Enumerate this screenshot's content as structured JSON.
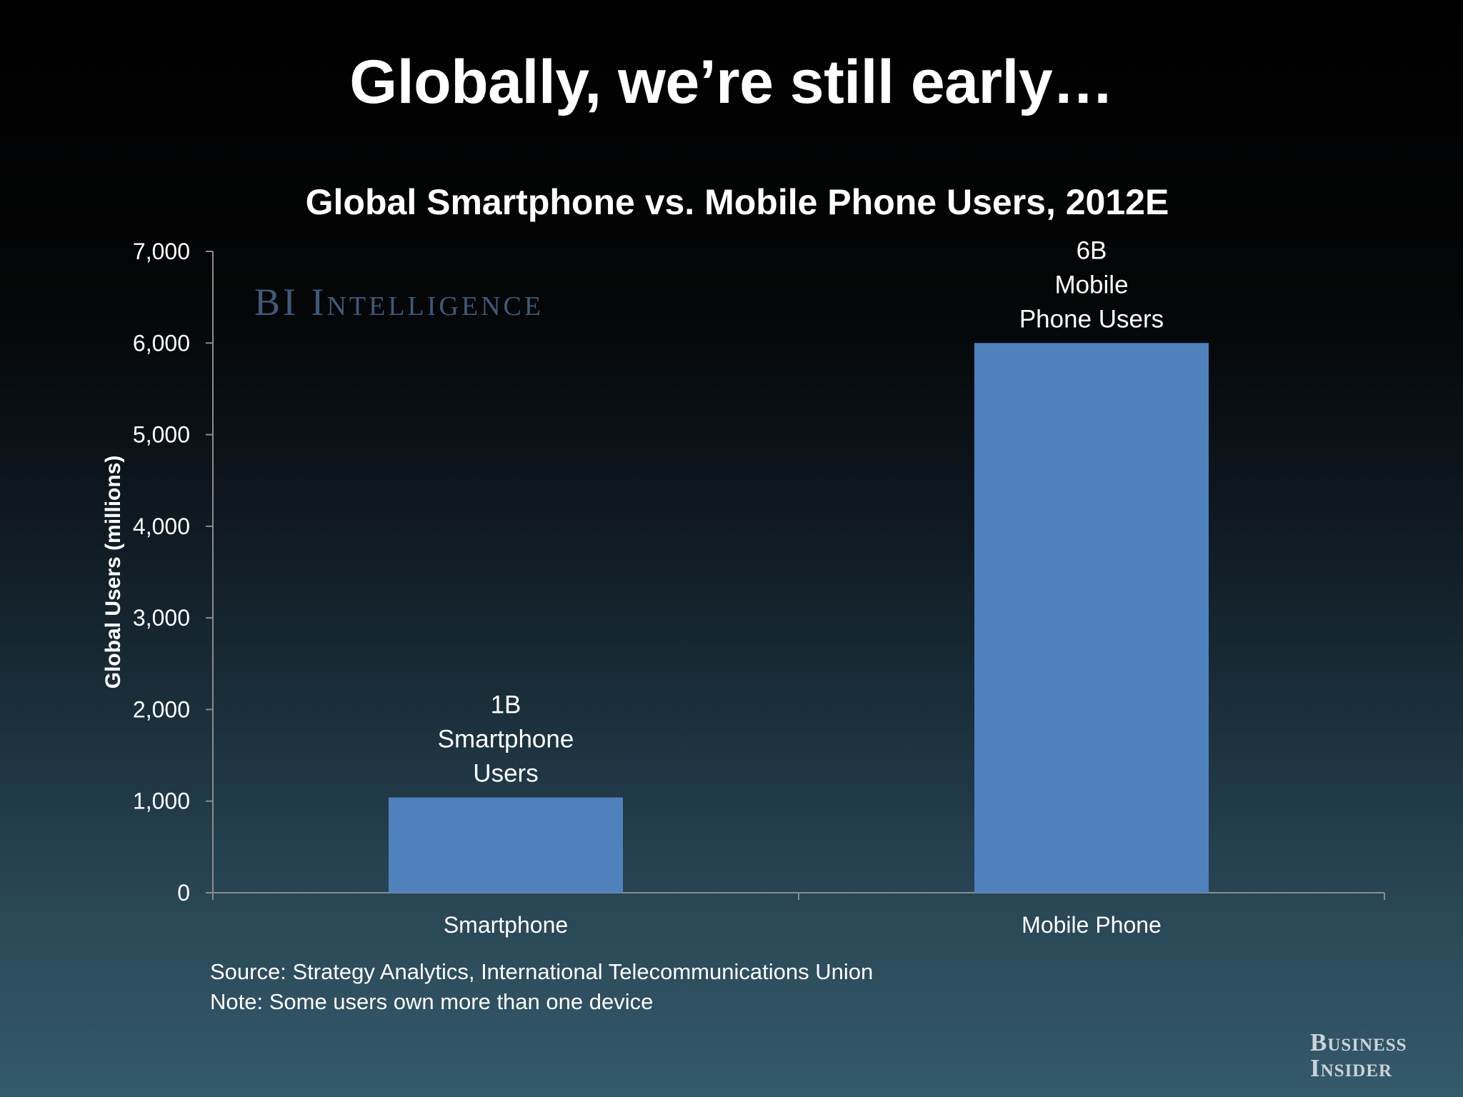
{
  "slide": {
    "title": "Globally, we’re still early…",
    "watermark": "BI Intelligence",
    "source": "Source: Strategy Analytics, International Telecommunications Union",
    "note": "Note: Some users own more than one device",
    "brand_logo": [
      "Business",
      "Insider"
    ]
  },
  "colors": {
    "bar": "#4f81bd",
    "axis": "#8c8c8c"
  },
  "chart_data": {
    "type": "bar",
    "title": "Global Smartphone vs. Mobile Phone Users, 2012E",
    "xlabel": "",
    "ylabel": "Global Users (millions)",
    "ylim": [
      0,
      7000
    ],
    "yticks": [
      0,
      1000,
      2000,
      3000,
      4000,
      5000,
      6000,
      7000
    ],
    "ytick_labels": [
      "0",
      "1,000",
      "2,000",
      "3,000",
      "4,000",
      "5,000",
      "6,000",
      "7,000"
    ],
    "categories": [
      "Smartphone",
      "Mobile Phone"
    ],
    "values": [
      1040,
      6000
    ],
    "data_labels": [
      [
        "1B",
        "Smartphone",
        "Users"
      ],
      [
        "6B",
        "Mobile",
        "Phone Users"
      ]
    ],
    "grid": false,
    "legend": "none"
  }
}
